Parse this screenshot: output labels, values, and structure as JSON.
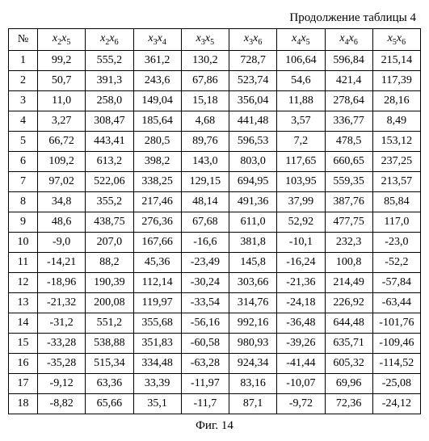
{
  "caption_top": "Продолжение таблицы 4",
  "caption_bottom": "Фиг. 14",
  "table": {
    "header_no": "№",
    "headers": [
      {
        "base": "x",
        "sub": "2",
        "base2": "x",
        "sub2": "5"
      },
      {
        "base": "x",
        "sub": "2",
        "base2": "x",
        "sub2": "6"
      },
      {
        "base": "x",
        "sub": "3",
        "base2": "x",
        "sub2": "4"
      },
      {
        "base": "x",
        "sub": "3",
        "base2": "x",
        "sub2": "5"
      },
      {
        "base": "x",
        "sub": "3",
        "base2": "x",
        "sub2": "6"
      },
      {
        "base": "x",
        "sub": "4",
        "base2": "x",
        "sub2": "5"
      },
      {
        "base": "x",
        "sub": "4",
        "base2": "x",
        "sub2": "6"
      },
      {
        "base": "x",
        "sub": "5",
        "base2": "x",
        "sub2": "6"
      }
    ],
    "rows": [
      {
        "n": "1",
        "c": [
          "99,2",
          "555,2",
          "361,2",
          "130,2",
          "728,7",
          "106,64",
          "596,84",
          "215,14"
        ]
      },
      {
        "n": "2",
        "c": [
          "50,7",
          "391,3",
          "243,6",
          "67,86",
          "523,74",
          "54,6",
          "421,4",
          "117,39"
        ]
      },
      {
        "n": "3",
        "c": [
          "11,0",
          "258,0",
          "149,04",
          "15,18",
          "356,04",
          "11,88",
          "278,64",
          "28,16"
        ]
      },
      {
        "n": "4",
        "c": [
          "3,27",
          "308,47",
          "185,64",
          "4,68",
          "441,48",
          "3,57",
          "336,77",
          "8,49"
        ]
      },
      {
        "n": "5",
        "c": [
          "66,72",
          "443,41",
          "280,5",
          "89,76",
          "596,53",
          "7,2",
          "478,5",
          "153,12"
        ]
      },
      {
        "n": "6",
        "c": [
          "109,2",
          "613,2",
          "398,2",
          "143,0",
          "803,0",
          "117,65",
          "660,65",
          "237,25"
        ]
      },
      {
        "n": "7",
        "c": [
          "97,02",
          "522,06",
          "338,25",
          "129,15",
          "694,95",
          "103,95",
          "559,35",
          "213,57"
        ]
      },
      {
        "n": "8",
        "c": [
          "34,8",
          "355,2",
          "217,46",
          "48,14",
          "491,36",
          "37,99",
          "387,76",
          "85,84"
        ]
      },
      {
        "n": "9",
        "c": [
          "48,6",
          "438,75",
          "276,36",
          "67,68",
          "611,0",
          "52,92",
          "477,75",
          "117,0"
        ]
      },
      {
        "n": "10",
        "c": [
          "-9,0",
          "207,0",
          "167,66",
          "-16,6",
          "381,8",
          "-10,1",
          "232,3",
          "-23,0"
        ]
      },
      {
        "n": "11",
        "c": [
          "-14,21",
          "88,2",
          "45,36",
          "-23,49",
          "145,8",
          "-16,24",
          "100,8",
          "-52,2"
        ]
      },
      {
        "n": "12",
        "c": [
          "-18,96",
          "190,39",
          "112,14",
          "-30,24",
          "303,66",
          "-21,36",
          "214,49",
          "-57,84"
        ]
      },
      {
        "n": "13",
        "c": [
          "-21,32",
          "200,08",
          "119,97",
          "-33,54",
          "314,76",
          "-24,18",
          "226,92",
          "-63,44"
        ]
      },
      {
        "n": "14",
        "c": [
          "-31,2",
          "551,2",
          "355,68",
          "-56,16",
          "992,16",
          "-36,48",
          "644,48",
          "-101,76"
        ]
      },
      {
        "n": "15",
        "c": [
          "-33,28",
          "538,88",
          "351,83",
          "-60,58",
          "980,93",
          "-39,26",
          "635,71",
          "-109,46"
        ]
      },
      {
        "n": "16",
        "c": [
          "-35,28",
          "515,34",
          "334,48",
          "-63,28",
          "924,34",
          "-41,44",
          "605,32",
          "-114,52"
        ]
      },
      {
        "n": "17",
        "c": [
          "-9,12",
          "63,36",
          "33,39",
          "-11,97",
          "83,16",
          "-10,07",
          "69,96",
          "-25,08"
        ]
      },
      {
        "n": "18",
        "c": [
          "-8,82",
          "65,66",
          "35,1",
          "-11,7",
          "87,1",
          "-9,72",
          "72,36",
          "-24,12"
        ]
      }
    ]
  }
}
